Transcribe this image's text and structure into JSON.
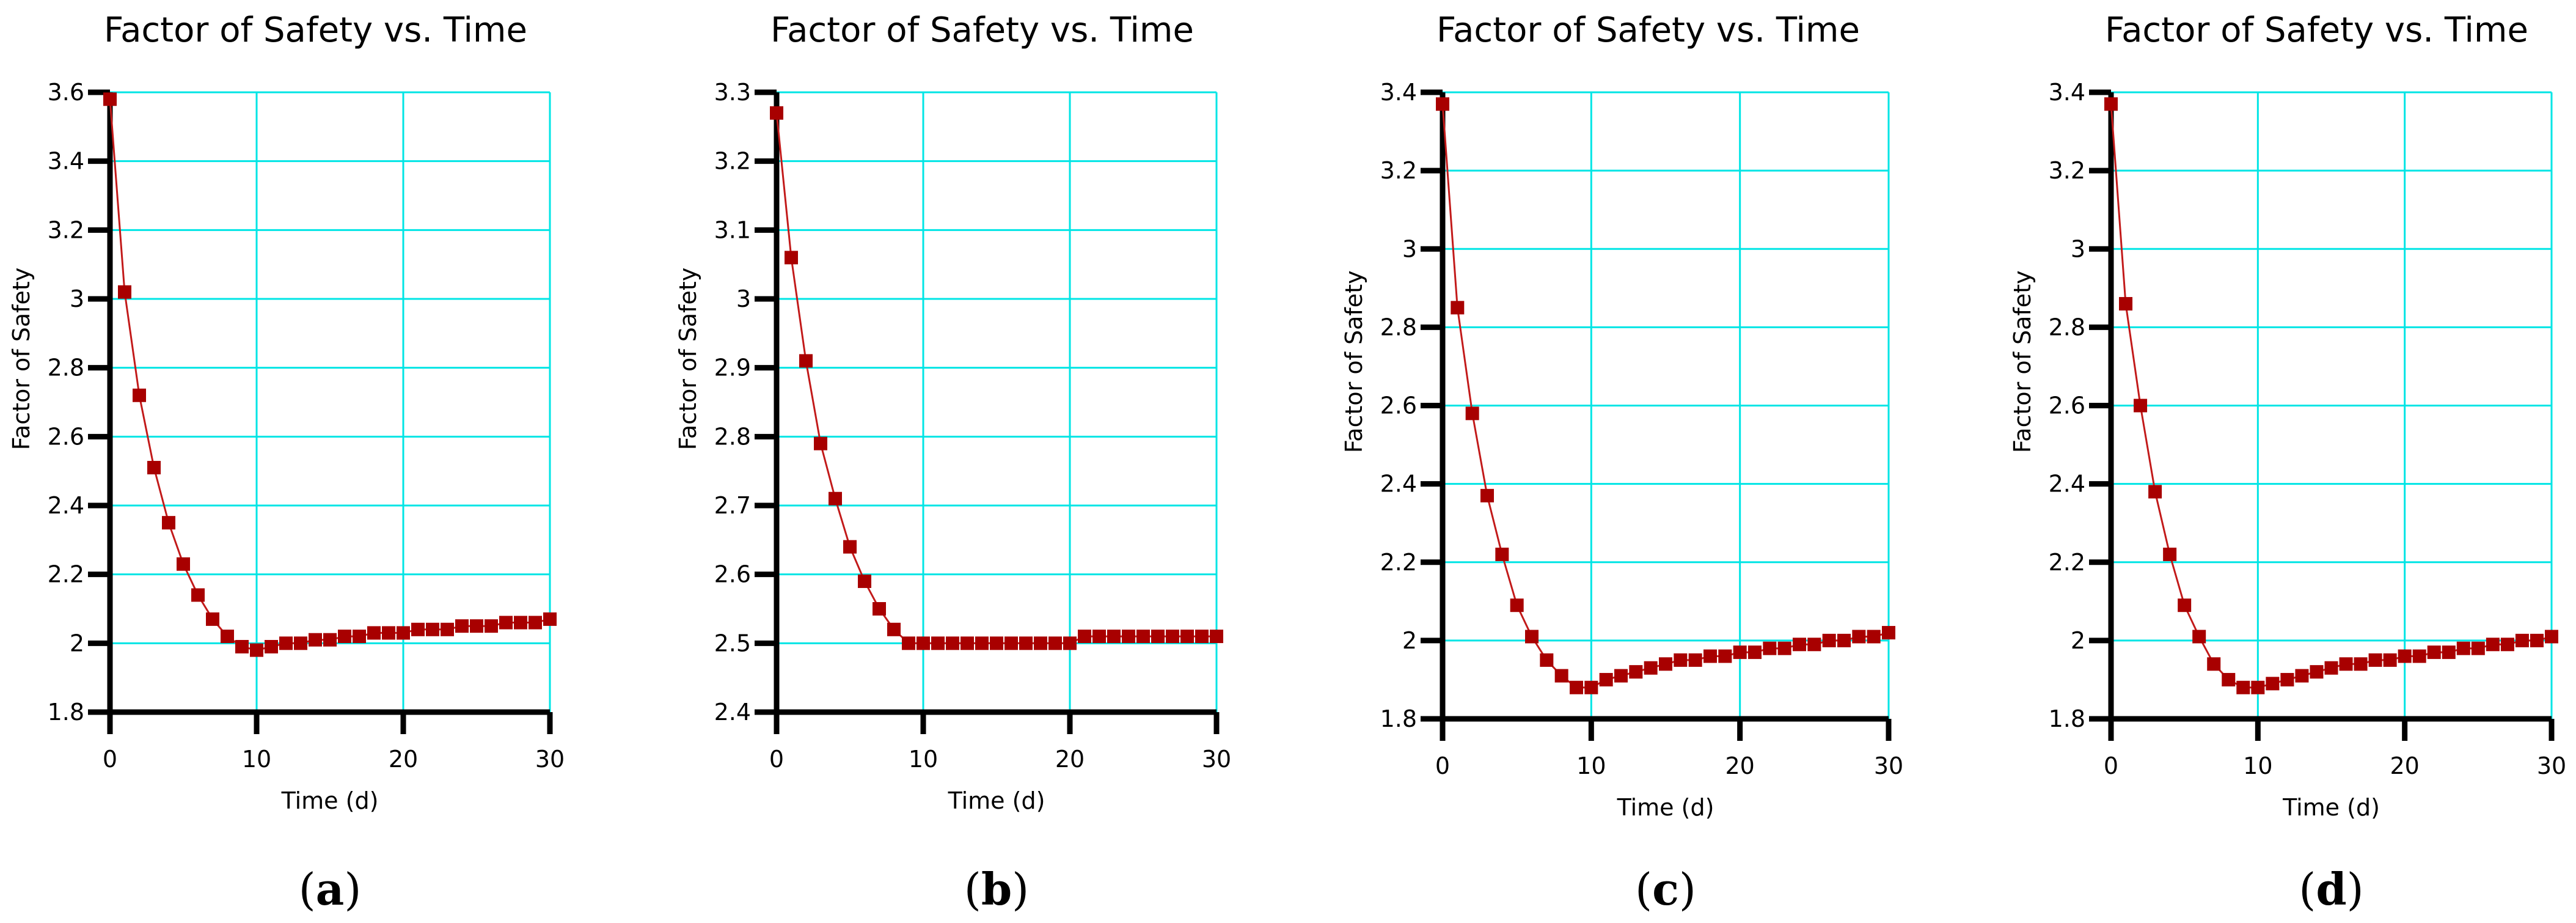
{
  "chart_data": [
    {
      "type": "line",
      "panel": "a",
      "title": "Factor of Safety vs. Time",
      "xlabel": "Time (d)",
      "ylabel": "Factor of Safety",
      "xlim": [
        0,
        30
      ],
      "ylim": [
        1.8,
        3.6
      ],
      "xticks": [
        0,
        10,
        20,
        30
      ],
      "yticks": [
        1.8,
        2,
        2.2,
        2.4,
        2.6,
        2.8,
        3,
        3.2,
        3.4,
        3.6
      ],
      "ytick_labels": [
        "1.8",
        "2",
        "2.2",
        "2.4",
        "2.6",
        "2.8",
        "3",
        "3.2",
        "3.4",
        "3.6"
      ],
      "grid": true,
      "series": [
        {
          "name": "Factor of Safety",
          "x": [
            0,
            1,
            2,
            3,
            4,
            5,
            6,
            7,
            8,
            9,
            10,
            11,
            12,
            13,
            14,
            15,
            16,
            17,
            18,
            19,
            20,
            21,
            22,
            23,
            24,
            25,
            26,
            27,
            28,
            29,
            30
          ],
          "values": [
            3.58,
            3.02,
            2.72,
            2.51,
            2.35,
            2.23,
            2.14,
            2.07,
            2.02,
            1.99,
            1.98,
            1.99,
            2.0,
            2.0,
            2.01,
            2.01,
            2.02,
            2.02,
            2.03,
            2.03,
            2.03,
            2.04,
            2.04,
            2.04,
            2.05,
            2.05,
            2.05,
            2.06,
            2.06,
            2.06,
            2.07
          ]
        }
      ],
      "caption": "(a)"
    },
    {
      "type": "line",
      "panel": "b",
      "title": "Factor of Safety vs. Time",
      "xlabel": "Time (d)",
      "ylabel": "Factor of Safety",
      "xlim": [
        0,
        30
      ],
      "ylim": [
        2.4,
        3.3
      ],
      "xticks": [
        0,
        10,
        20,
        30
      ],
      "yticks": [
        2.4,
        2.5,
        2.6,
        2.7,
        2.8,
        2.9,
        3.0,
        3.1,
        3.2,
        3.3
      ],
      "ytick_labels": [
        "2.4",
        "2.5",
        "2.6",
        "2.7",
        "2.8",
        "2.9",
        "3",
        "3.1",
        "3.2",
        "3.3"
      ],
      "grid": true,
      "series": [
        {
          "name": "Factor of Safety",
          "x": [
            0,
            1,
            2,
            3,
            4,
            5,
            6,
            7,
            8,
            9,
            10,
            11,
            12,
            13,
            14,
            15,
            16,
            17,
            18,
            19,
            20,
            21,
            22,
            23,
            24,
            25,
            26,
            27,
            28,
            29,
            30
          ],
          "values": [
            3.27,
            3.06,
            2.91,
            2.79,
            2.71,
            2.64,
            2.59,
            2.55,
            2.52,
            2.5,
            2.5,
            2.5,
            2.5,
            2.5,
            2.5,
            2.5,
            2.5,
            2.5,
            2.5,
            2.5,
            2.5,
            2.51,
            2.51,
            2.51,
            2.51,
            2.51,
            2.51,
            2.51,
            2.51,
            2.51,
            2.51
          ]
        }
      ],
      "caption": "(b)"
    },
    {
      "type": "line",
      "panel": "c",
      "title": "Factor of Safety vs. Time",
      "xlabel": "Time (d)",
      "ylabel": "Factor of Safety",
      "xlim": [
        0,
        30
      ],
      "ylim": [
        1.8,
        3.4
      ],
      "xticks": [
        0,
        10,
        20,
        30
      ],
      "yticks": [
        1.8,
        2,
        2.2,
        2.4,
        2.6,
        2.8,
        3,
        3.2,
        3.4
      ],
      "ytick_labels": [
        "1.8",
        "2",
        "2.2",
        "2.4",
        "2.6",
        "2.8",
        "3",
        "3.2",
        "3.4"
      ],
      "grid": true,
      "series": [
        {
          "name": "Factor of Safety",
          "x": [
            0,
            1,
            2,
            3,
            4,
            5,
            6,
            7,
            8,
            9,
            10,
            11,
            12,
            13,
            14,
            15,
            16,
            17,
            18,
            19,
            20,
            21,
            22,
            23,
            24,
            25,
            26,
            27,
            28,
            29,
            30
          ],
          "values": [
            3.37,
            2.85,
            2.58,
            2.37,
            2.22,
            2.09,
            2.01,
            1.95,
            1.91,
            1.88,
            1.88,
            1.9,
            1.91,
            1.92,
            1.93,
            1.94,
            1.95,
            1.95,
            1.96,
            1.96,
            1.97,
            1.97,
            1.98,
            1.98,
            1.99,
            1.99,
            2.0,
            2.0,
            2.01,
            2.01,
            2.02
          ]
        }
      ],
      "caption": "(c)"
    },
    {
      "type": "line",
      "panel": "d",
      "title": "Factor of Safety vs. Time",
      "xlabel": "Time (d)",
      "ylabel": "Factor of Safety",
      "xlim": [
        0,
        30
      ],
      "ylim": [
        1.8,
        3.4
      ],
      "xticks": [
        0,
        10,
        20,
        30
      ],
      "yticks": [
        1.8,
        2,
        2.2,
        2.4,
        2.6,
        2.8,
        3,
        3.2,
        3.4
      ],
      "ytick_labels": [
        "1.8",
        "2",
        "2.2",
        "2.4",
        "2.6",
        "2.8",
        "3",
        "3.2",
        "3.4"
      ],
      "grid": true,
      "series": [
        {
          "name": "Factor of Safety",
          "x": [
            0,
            1,
            2,
            3,
            4,
            5,
            6,
            7,
            8,
            9,
            10,
            11,
            12,
            13,
            14,
            15,
            16,
            17,
            18,
            19,
            20,
            21,
            22,
            23,
            24,
            25,
            26,
            27,
            28,
            29,
            30
          ],
          "values": [
            3.37,
            2.86,
            2.6,
            2.38,
            2.22,
            2.09,
            2.01,
            1.94,
            1.9,
            1.88,
            1.88,
            1.89,
            1.9,
            1.91,
            1.92,
            1.93,
            1.94,
            1.94,
            1.95,
            1.95,
            1.96,
            1.96,
            1.97,
            1.97,
            1.98,
            1.98,
            1.99,
            1.99,
            2.0,
            2.0,
            2.01
          ]
        }
      ],
      "caption": "(d)"
    }
  ],
  "colors": {
    "grid": "#00e5e5",
    "axis": "#000000",
    "line": "#c21a1a",
    "marker": "#a80000"
  }
}
